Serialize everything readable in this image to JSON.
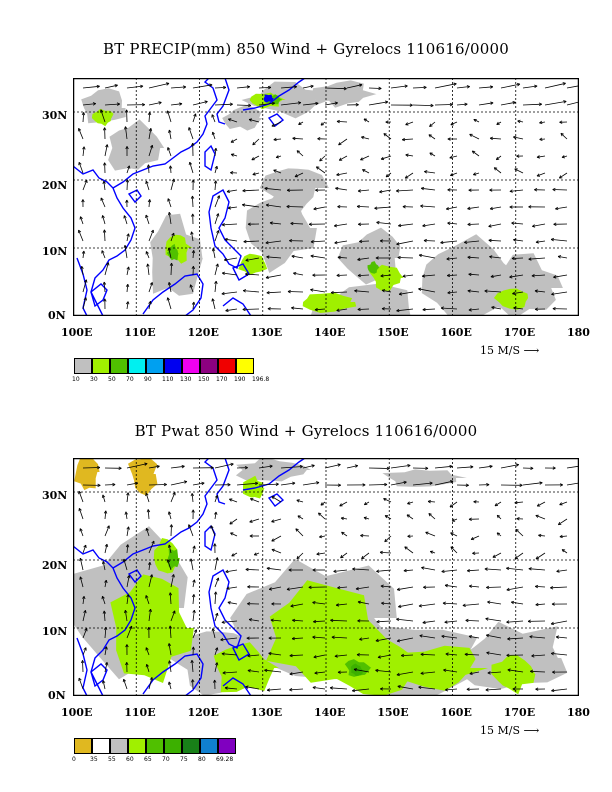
{
  "panels": [
    {
      "title": "BT PRECIP(mm) 850 Wind + Gyrelocs 110616/0000",
      "y_labels": [
        "30N",
        "20N",
        "10N",
        "0N"
      ],
      "x_labels": [
        "100E",
        "110E",
        "120E",
        "130E",
        "140E",
        "150E",
        "160E",
        "170E",
        "180"
      ],
      "ref_vector": "15 M/S",
      "legend": {
        "colors": [
          "#c0c0c0",
          "#a0f000",
          "#50c000",
          "#00f0f0",
          "#00a0f0",
          "#0000f0",
          "#f000f0",
          "#8c0080",
          "#f00000",
          "#ffff00"
        ],
        "ticks": [
          "10",
          "30",
          "50",
          "70",
          "90",
          "110",
          "130",
          "150",
          "170",
          "190",
          "196.8"
        ]
      }
    },
    {
      "title": "BT Pwat 850 Wind + Gyrelocs 110616/0000",
      "y_labels": [
        "30N",
        "20N",
        "10N",
        "0N"
      ],
      "x_labels": [
        "100E",
        "110E",
        "120E",
        "130E",
        "140E",
        "150E",
        "160E",
        "170E",
        "180"
      ],
      "ref_vector": "15 M/S",
      "legend": {
        "colors": [
          "#e0b820",
          "#ffffff",
          "#c0c0c0",
          "#a0f000",
          "#50c000",
          "#3cb000",
          "#188018",
          "#1080d0",
          "#8000c0"
        ],
        "ticks": [
          "0",
          "35",
          "55",
          "60",
          "65",
          "70",
          "75",
          "80",
          "69.28"
        ]
      }
    }
  ]
}
